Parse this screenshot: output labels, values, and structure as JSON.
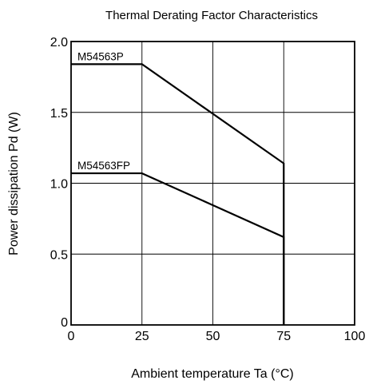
{
  "chart_data": {
    "type": "line",
    "title": "Thermal Derating Factor Characteristics",
    "xlabel": "Ambient temperature  Ta (°C)",
    "ylabel": "Power dissipation  Pd (W)",
    "xlim": [
      0,
      100
    ],
    "ylim": [
      0,
      2.0
    ],
    "x_ticks": [
      "0",
      "25",
      "50",
      "75",
      "100"
    ],
    "y_ticks": [
      "0",
      "0.5",
      "1.0",
      "1.5",
      "2.0"
    ],
    "grid": true,
    "legend": "none",
    "series": [
      {
        "name": "M54563P",
        "x": [
          0,
          25,
          75,
          75
        ],
        "y": [
          1.84,
          1.84,
          1.14,
          0
        ]
      },
      {
        "name": "M54563FP",
        "x": [
          0,
          25,
          75,
          75
        ],
        "y": [
          1.07,
          1.07,
          0.62,
          0
        ]
      }
    ]
  }
}
